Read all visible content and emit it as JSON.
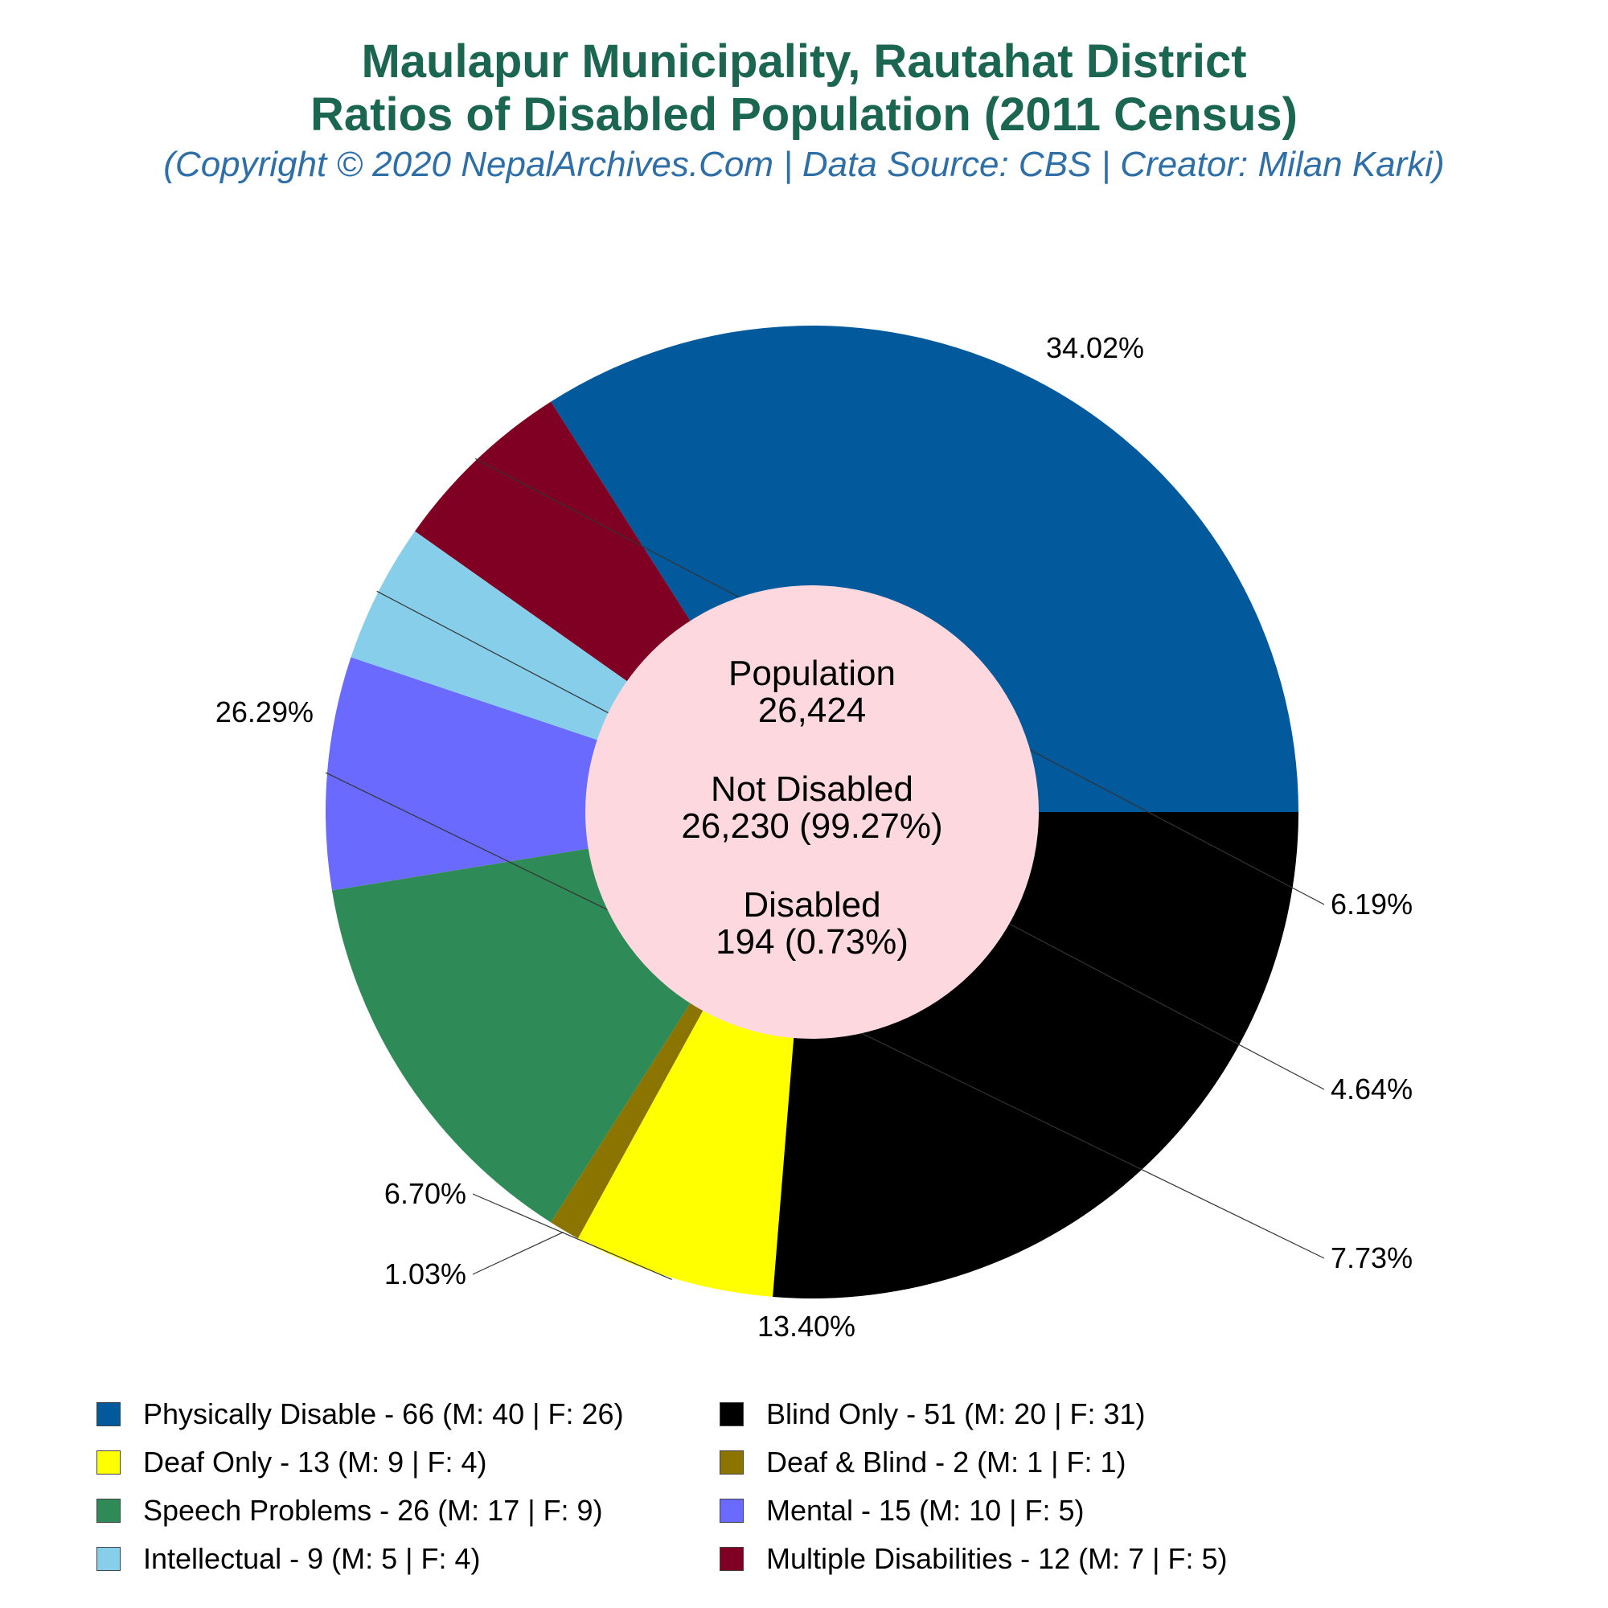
{
  "title_line1": "Maulapur Municipality, Rautahat District",
  "title_line2": "Ratios of Disabled Population (2011 Census)",
  "subtitle": "(Copyright © 2020 NepalArchives.Com | Data Source: CBS | Creator: Milan Karki)",
  "center": {
    "population_label": "Population",
    "population_value": "26,424",
    "not_disabled_label": "Not Disabled",
    "not_disabled_value": "26,230 (99.27%)",
    "disabled_label": "Disabled",
    "disabled_value": "194 (0.73%)"
  },
  "chart_data": {
    "type": "pie",
    "total": 194,
    "slices": [
      {
        "label": "Physically Disable",
        "value": 66,
        "male": 40,
        "female": 26,
        "percent_label": "34.02%",
        "color": "#02599c",
        "legend": "Physically Disable - 66 (M: 40 | F: 26)"
      },
      {
        "label": "Multiple Disabilities",
        "value": 12,
        "male": 7,
        "female": 5,
        "percent_label": "6.19%",
        "color": "#7f0022",
        "legend": "Multiple Disabilities - 12 (M: 7 | F: 5)"
      },
      {
        "label": "Intellectual",
        "value": 9,
        "male": 5,
        "female": 4,
        "percent_label": "4.64%",
        "color": "#87ceeb",
        "legend": "Intellectual - 9 (M: 5 | F: 4)"
      },
      {
        "label": "Mental",
        "value": 15,
        "male": 10,
        "female": 5,
        "percent_label": "7.73%",
        "color": "#6a6afe",
        "legend": "Mental - 15 (M: 10 | F: 5)"
      },
      {
        "label": "Speech Problems",
        "value": 26,
        "male": 17,
        "female": 9,
        "percent_label": "13.40%",
        "color": "#2e8b57",
        "legend": "Speech Problems - 26 (M: 17 | F: 9)"
      },
      {
        "label": "Deaf & Blind",
        "value": 2,
        "male": 1,
        "female": 1,
        "percent_label": "1.03%",
        "color": "#8b7500",
        "legend": "Deaf & Blind - 2 (M: 1 | F: 1)"
      },
      {
        "label": "Deaf Only",
        "value": 13,
        "male": 9,
        "female": 4,
        "percent_label": "6.70%",
        "color": "#ffff00",
        "legend": "Deaf Only - 13 (M: 9 | F: 4)"
      },
      {
        "label": "Blind Only",
        "value": 51,
        "male": 20,
        "female": 31,
        "percent_label": "26.29%",
        "color": "#000000",
        "legend": "Blind Only - 51 (M: 20 | F: 31)"
      }
    ],
    "legend_order": [
      "Physically Disable",
      "Blind Only",
      "Deaf Only",
      "Deaf & Blind",
      "Speech Problems",
      "Mental",
      "Intellectual",
      "Multiple Disabilities"
    ],
    "center_color": "#fdd9df"
  }
}
